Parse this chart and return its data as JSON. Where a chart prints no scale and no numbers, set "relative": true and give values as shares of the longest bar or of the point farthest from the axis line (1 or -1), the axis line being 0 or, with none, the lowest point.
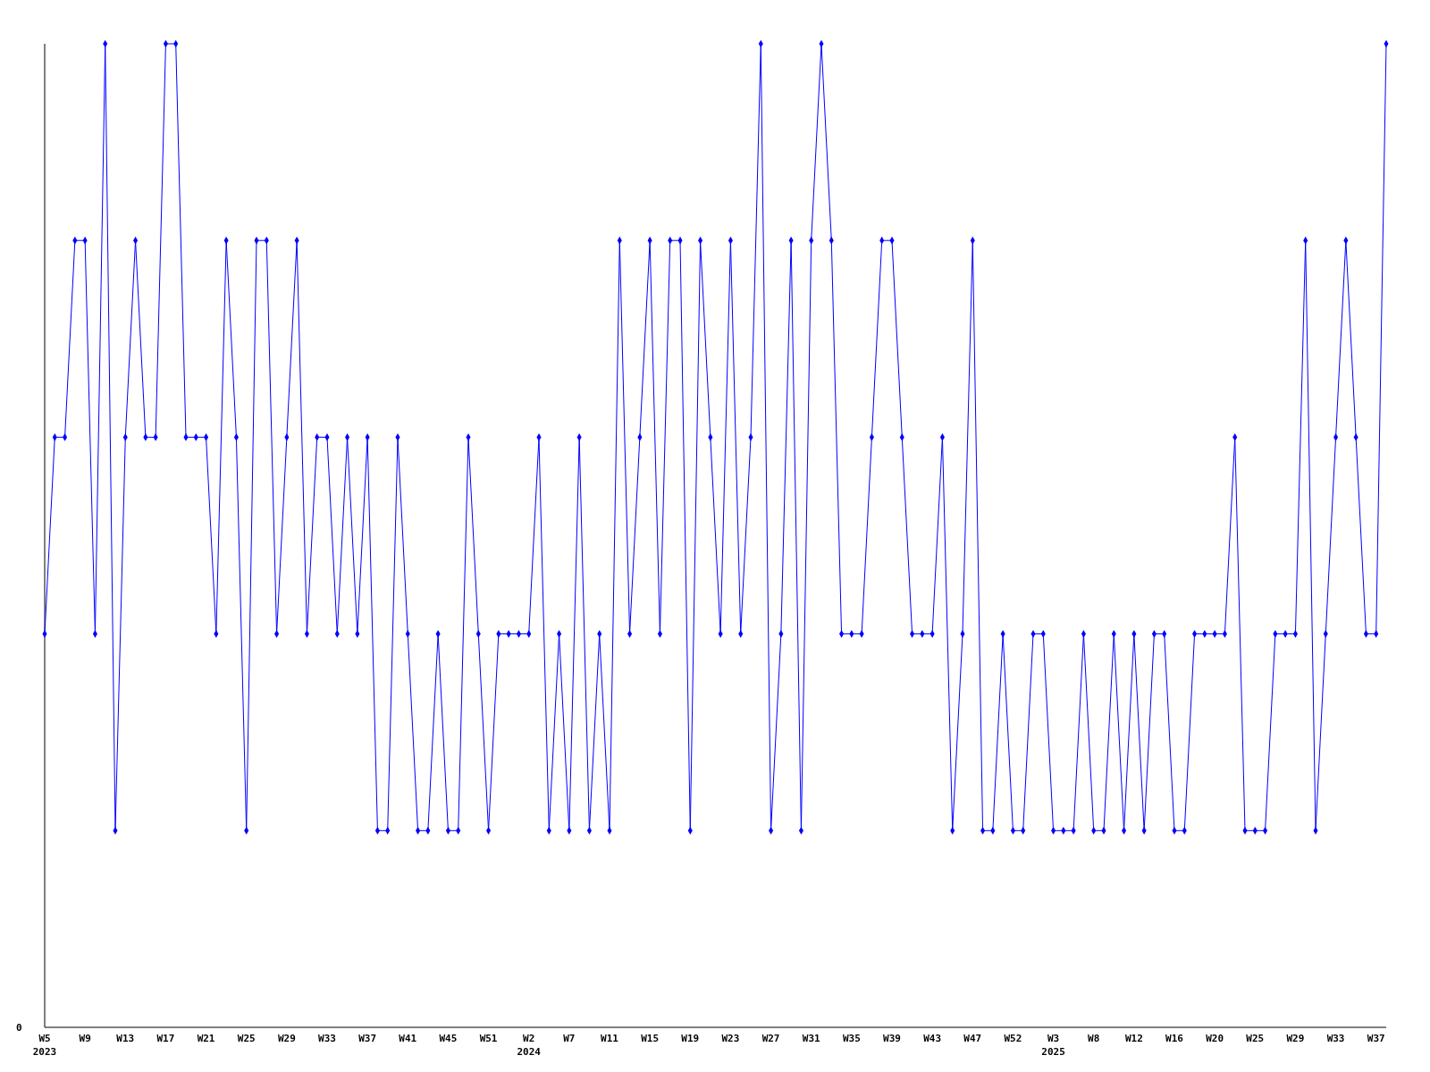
{
  "chart_data": {
    "type": "line",
    "relative": true,
    "marker": "diamond",
    "grid": false,
    "annotations": [
      "0"
    ],
    "categories": [
      "W5\n2023",
      null,
      null,
      null,
      "W9",
      null,
      null,
      null,
      "W13",
      null,
      null,
      null,
      "W17",
      null,
      null,
      null,
      "W21",
      null,
      null,
      null,
      "W25",
      null,
      null,
      null,
      "W29",
      null,
      null,
      null,
      "W33",
      null,
      null,
      null,
      "W37",
      null,
      null,
      null,
      "W41",
      null,
      null,
      null,
      "W45",
      null,
      null,
      null,
      "W51",
      null,
      null,
      null,
      "W2\n2024",
      null,
      null,
      null,
      "W7",
      null,
      null,
      null,
      "W11",
      null,
      null,
      null,
      "W15",
      null,
      null,
      null,
      "W19",
      null,
      null,
      null,
      "W23",
      null,
      null,
      null,
      "W27",
      null,
      null,
      null,
      "W31",
      null,
      null,
      null,
      "W35",
      null,
      null,
      null,
      "W39",
      null,
      null,
      null,
      "W43",
      null,
      null,
      null,
      "W47",
      null,
      null,
      null,
      "W52",
      null,
      null,
      null,
      "W3\n2025",
      null,
      null,
      null,
      "W8",
      null,
      null,
      null,
      "W12",
      null,
      null,
      null,
      "W16",
      null,
      null,
      null,
      "W20",
      null,
      null,
      null,
      "W25",
      null,
      null,
      null,
      "W29",
      null,
      null,
      null,
      "W33",
      null,
      null,
      null,
      "W37",
      null
    ],
    "series": [
      {
        "color": "#0000ff",
        "values": [
          0.4,
          0.6,
          0.6,
          0.8,
          0.8,
          0.4,
          1,
          0.2,
          0.6,
          0.8,
          0.6,
          0.6,
          1,
          1,
          0.6,
          0.6,
          0.6,
          0.4,
          0.8,
          0.6,
          0.2,
          0.8,
          0.8,
          0.4,
          0.6,
          0.8,
          0.4,
          0.6,
          0.6,
          0.4,
          0.6,
          0.4,
          0.6,
          0.2,
          0.2,
          0.6,
          0.4,
          0.2,
          0.2,
          0.4,
          0.2,
          0.2,
          0.6,
          0.4,
          0.2,
          0.4,
          0.4,
          0.4,
          0.4,
          0.6,
          0.2,
          0.4,
          0.2,
          0.6,
          0.2,
          0.4,
          0.2,
          0.8,
          0.4,
          0.6,
          0.8,
          0.4,
          0.8,
          0.8,
          0.2,
          0.8,
          0.6,
          0.4,
          0.8,
          0.4,
          0.6,
          1,
          0.2,
          0.4,
          0.8,
          0.2,
          0.8,
          1,
          0.8,
          0.4,
          0.4,
          0.4,
          0.6,
          0.8,
          0.8,
          0.6,
          0.4,
          0.4,
          0.4,
          0.6,
          0.2,
          0.4,
          0.8,
          0.2,
          0.2,
          0.4,
          0.2,
          0.2,
          0.4,
          0.4,
          0.2,
          0.2,
          0.2,
          0.4,
          0.2,
          0.2,
          0.4,
          0.2,
          0.4,
          0.2,
          0.4,
          0.4,
          0.2,
          0.2,
          0.4,
          0.4,
          0.4,
          0.4,
          0.6,
          0.2,
          0.2,
          0.2,
          0.4,
          0.4,
          0.4,
          0.8,
          0.2,
          0.4,
          0.6,
          0.8,
          0.6,
          0.4,
          0.4,
          1
        ]
      }
    ]
  }
}
